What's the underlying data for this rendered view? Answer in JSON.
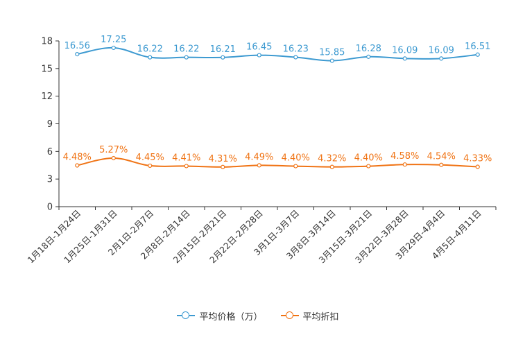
{
  "chart_data": {
    "type": "line",
    "title": "",
    "xlabel": "",
    "ylabel": "",
    "ylim": [
      0,
      18
    ],
    "yticks": [
      0,
      3,
      6,
      9,
      12,
      15,
      18
    ],
    "grid": false,
    "legend_position": "bottom-center",
    "categories": [
      "1月18日-1月24日",
      "1月25日-1月31日",
      "2月1日-2月7日",
      "2月8日-2月14日",
      "2月15日-2月21日",
      "2月22日-2月28日",
      "3月1日-3月7日",
      "3月8日-3月14日",
      "3月15日-3月21日",
      "3月22日-3月28日",
      "3月29日-4月4日",
      "4月5日-4月11日"
    ],
    "series": [
      {
        "name": "平均价格（万）",
        "color": "#3d9ad1",
        "values": [
          16.56,
          17.25,
          16.22,
          16.22,
          16.21,
          16.45,
          16.23,
          15.85,
          16.28,
          16.09,
          16.09,
          16.51
        ],
        "labels": [
          "16.56",
          "17.25",
          "16.22",
          "16.22",
          "16.21",
          "16.45",
          "16.23",
          "15.85",
          "16.28",
          "16.09",
          "16.09",
          "16.51"
        ]
      },
      {
        "name": "平均折扣",
        "color": "#f07314",
        "values": [
          4.48,
          5.27,
          4.45,
          4.41,
          4.31,
          4.49,
          4.4,
          4.32,
          4.4,
          4.58,
          4.54,
          4.33
        ],
        "labels": [
          "4.48%",
          "5.27%",
          "4.45%",
          "4.41%",
          "4.31%",
          "4.49%",
          "4.40%",
          "4.32%",
          "4.40%",
          "4.58%",
          "4.54%",
          "4.33%"
        ]
      }
    ]
  },
  "legend": {
    "price_label": "平均价格（万）",
    "discount_label": "平均折扣"
  }
}
